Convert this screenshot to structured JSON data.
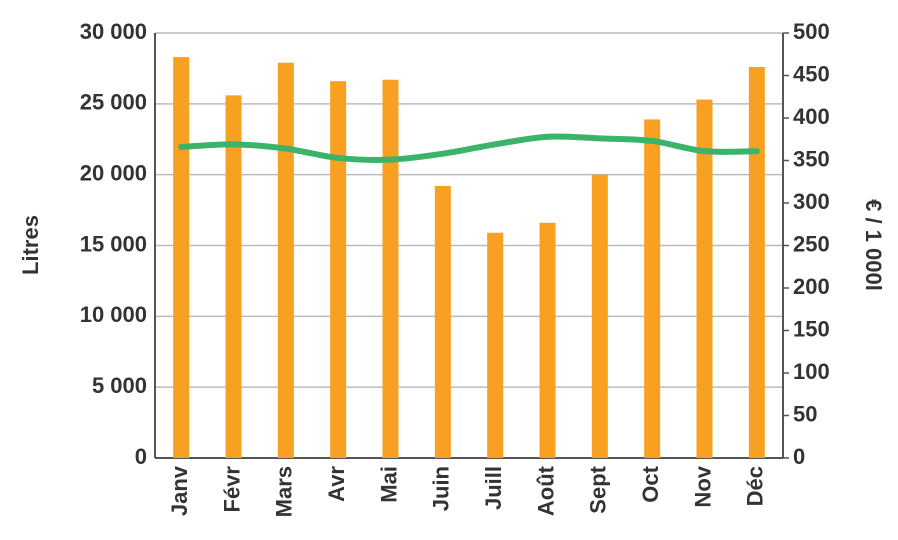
{
  "chart_data": {
    "type": "bar",
    "categories": [
      "Janv",
      "Févr",
      "Mars",
      "Avr",
      "Mai",
      "Juin",
      "Juill",
      "Août",
      "Sept",
      "Oct",
      "Nov",
      "Déc"
    ],
    "ylabel": "Litres",
    "y2label": "€ / 1 000l",
    "series": [
      {
        "type": "bar",
        "color": "#f7a021",
        "values": [
          28300,
          25600,
          27900,
          26600,
          26700,
          19200,
          15900,
          16600,
          20000,
          23900,
          25300,
          27600
        ]
      },
      {
        "type": "line",
        "axis": "y2",
        "color": "#3cb36a",
        "values": [
          366,
          369,
          364,
          353,
          351,
          358,
          369,
          378,
          376,
          373,
          361,
          361
        ]
      }
    ],
    "ylim": [
      0,
      30000
    ],
    "yticks": [
      {
        "value": 0,
        "label": "0"
      },
      {
        "value": 5000,
        "label": "5 000"
      },
      {
        "value": 10000,
        "label": "10 000"
      },
      {
        "value": 15000,
        "label": "15 000"
      },
      {
        "value": 20000,
        "label": "20 000"
      },
      {
        "value": 25000,
        "label": "25 000"
      },
      {
        "value": 30000,
        "label": "30 000"
      }
    ],
    "y2lim": [
      0,
      500
    ],
    "y2ticks": [
      0,
      50,
      100,
      150,
      200,
      250,
      300,
      350,
      400,
      450,
      500
    ],
    "grid": true
  }
}
